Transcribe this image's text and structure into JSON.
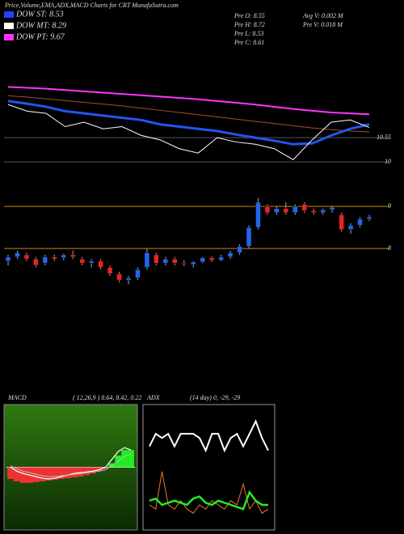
{
  "header": {
    "title": "Price,Volume,EMA,ADX,MACD Charts for CRT MunafaSutra.com"
  },
  "legend": [
    {
      "label": "DOW ST: 8.53",
      "color": "#2244ff"
    },
    {
      "label": "DOW MT: 8.29",
      "color": "#ffffff"
    },
    {
      "label": "DOW PT: 9.67",
      "color": "#ff33ff"
    }
  ],
  "info": [
    "Pre  O: 8.55",
    "Pre  H: 8.72",
    "Pre  L: 8.53",
    "Pre  C: 8.61",
    "Avg V: 0.002  M",
    "Pre  V: 0.018 M"
  ],
  "chart_data": [
    {
      "type": "line",
      "ylim": [
        9.91,
        12.57
      ],
      "yticks": [
        10.55,
        10
      ],
      "grid": true,
      "series": [
        {
          "color": "#ff33ff",
          "values": [
            11.7,
            11.68,
            11.66,
            11.63,
            11.6,
            11.57,
            11.54,
            11.51,
            11.48,
            11.45,
            11.42,
            11.38,
            11.34,
            11.3,
            11.25,
            11.2,
            11.16,
            11.12,
            11.1,
            11.08
          ]
        },
        {
          "color": "#a0522d",
          "values": [
            11.5,
            11.47,
            11.43,
            11.39,
            11.35,
            11.31,
            11.27,
            11.22,
            11.17,
            11.12,
            11.07,
            11.02,
            10.97,
            10.92,
            10.87,
            10.82,
            10.77,
            10.73,
            10.7,
            10.68
          ]
        },
        {
          "color": "#2255ee",
          "values": [
            11.38,
            11.32,
            11.25,
            11.15,
            11.1,
            11.05,
            11.0,
            10.95,
            10.85,
            10.8,
            10.75,
            10.7,
            10.62,
            10.55,
            10.48,
            10.4,
            10.42,
            10.6,
            10.75,
            10.85
          ]
        },
        {
          "color": "#ffffff",
          "values": [
            11.3,
            11.15,
            11.1,
            10.8,
            10.9,
            10.75,
            10.8,
            10.6,
            10.5,
            10.3,
            10.2,
            10.55,
            10.45,
            10.4,
            10.3,
            10.05,
            10.5,
            10.9,
            10.95,
            10.78
          ]
        }
      ]
    },
    {
      "type": "candlestick",
      "ylim": [
        6.6,
        9.77
      ],
      "yticks": [
        9,
        8
      ],
      "grid": true,
      "grid_color": "#c8860b",
      "up_color": "#2266ee",
      "down_color": "#ee2222",
      "open": [
        7.7,
        7.8,
        7.85,
        7.75,
        7.65,
        7.8,
        7.78,
        7.85,
        7.75,
        7.65,
        7.7,
        7.55,
        7.4,
        7.25,
        7.3,
        7.55,
        7.85,
        7.65,
        7.75,
        7.65,
        7.62,
        7.68,
        7.78,
        7.72,
        7.8,
        7.9,
        8.05,
        8.5,
        9.0,
        8.85,
        8.95,
        8.85,
        9.05,
        8.9,
        8.85,
        8.92,
        8.8,
        8.45,
        8.55,
        8.7
      ],
      "high": [
        7.85,
        7.95,
        7.9,
        7.8,
        7.85,
        7.85,
        7.88,
        7.95,
        7.8,
        7.75,
        7.75,
        7.6,
        7.45,
        7.35,
        7.55,
        8.0,
        7.9,
        7.8,
        7.8,
        7.72,
        7.7,
        7.8,
        7.82,
        7.85,
        7.95,
        8.1,
        8.55,
        9.2,
        9.05,
        9.0,
        9.1,
        9.05,
        9.1,
        8.95,
        8.95,
        9.02,
        8.85,
        8.6,
        8.75,
        8.8
      ],
      "low": [
        7.6,
        7.75,
        7.7,
        7.55,
        7.6,
        7.7,
        7.72,
        7.75,
        7.6,
        7.55,
        7.5,
        7.35,
        7.2,
        7.15,
        7.25,
        7.5,
        7.6,
        7.6,
        7.6,
        7.58,
        7.55,
        7.65,
        7.68,
        7.7,
        7.75,
        7.85,
        8.0,
        8.45,
        8.8,
        8.8,
        8.8,
        8.8,
        8.85,
        8.8,
        8.8,
        8.85,
        8.4,
        8.35,
        8.5,
        8.65
      ],
      "close": [
        7.8,
        7.9,
        7.75,
        7.6,
        7.8,
        7.75,
        7.85,
        7.8,
        7.65,
        7.7,
        7.55,
        7.4,
        7.25,
        7.3,
        7.5,
        7.9,
        7.65,
        7.75,
        7.65,
        7.62,
        7.68,
        7.78,
        7.72,
        7.8,
        7.9,
        8.05,
        8.5,
        9.1,
        8.85,
        8.95,
        8.85,
        9.0,
        8.9,
        8.85,
        8.92,
        8.98,
        8.45,
        8.55,
        8.7,
        8.75
      ]
    },
    {
      "type": "macd",
      "title": "MACD",
      "subtitle": "( 12,26,9 ) 8.64, 8.42, 0.22",
      "ylim": [
        -0.8,
        0.8
      ],
      "series": [
        {
          "color": "#ffffff",
          "values": [
            0.0,
            -0.05,
            -0.08,
            -0.1,
            -0.12,
            -0.14,
            -0.15,
            -0.14,
            -0.12,
            -0.1,
            -0.08,
            -0.07,
            -0.06,
            -0.05,
            -0.03,
            0.0,
            0.1,
            0.2,
            0.25,
            0.22
          ]
        },
        {
          "color": "#bbbbbb",
          "values": [
            0.02,
            -0.02,
            -0.05,
            -0.07,
            -0.09,
            -0.11,
            -0.12,
            -0.12,
            -0.11,
            -0.1,
            -0.09,
            -0.08,
            -0.07,
            -0.06,
            -0.05,
            -0.03,
            0.02,
            0.08,
            0.14,
            0.17
          ]
        }
      ],
      "histogram": {
        "up_color": "#22ee22",
        "down_color": "#ee3333",
        "values": [
          -0.15,
          -0.18,
          -0.2,
          -0.2,
          -0.19,
          -0.18,
          -0.17,
          -0.16,
          -0.15,
          -0.14,
          -0.13,
          -0.12,
          -0.1,
          -0.08,
          -0.05,
          -0.02,
          0.05,
          0.15,
          0.22,
          0.22
        ]
      }
    },
    {
      "type": "adx",
      "title": "ADX",
      "subtitle": "(14  day) 0, -29, -29",
      "ylim": [
        0,
        60
      ],
      "series": [
        {
          "color": "#ffffff",
          "values": [
            40,
            46,
            44,
            46,
            40,
            46,
            46,
            46,
            44,
            38,
            46,
            46,
            38,
            44,
            46,
            40,
            46,
            52,
            44,
            38
          ]
        },
        {
          "color": "#ee7722",
          "values": [
            12,
            10,
            28,
            12,
            10,
            14,
            10,
            8,
            12,
            10,
            14,
            12,
            10,
            14,
            12,
            22,
            10,
            14,
            8,
            10
          ]
        },
        {
          "color": "#22ee22",
          "values": [
            14,
            15,
            12,
            13,
            14,
            13,
            12,
            15,
            16,
            13,
            12,
            14,
            13,
            12,
            11,
            10,
            18,
            14,
            12,
            12
          ]
        }
      ]
    }
  ]
}
